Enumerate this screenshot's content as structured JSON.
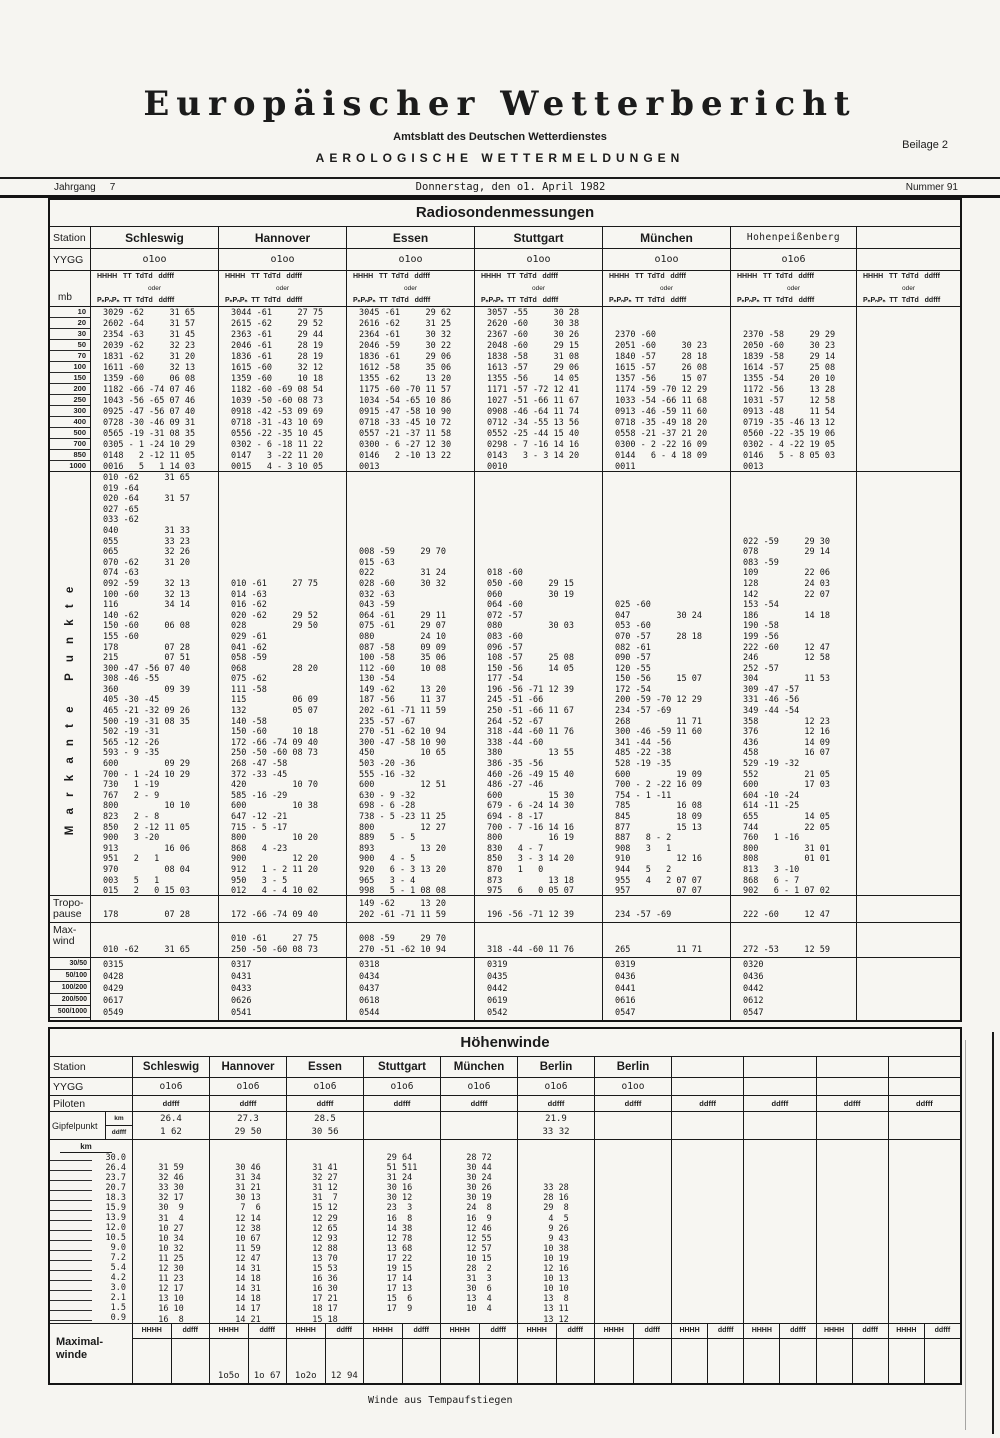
{
  "page": {
    "title": "Europäischer Wetterbericht",
    "subtitle": "Amtsblatt des Deutschen Wetterdienstes",
    "subtitle2": "AEROLOGISCHE WETTERMELDUNGEN",
    "beilage": "Beilage 2",
    "jahrgang_label": "Jahrgang",
    "jahrgang_value": "7",
    "date": "Donnerstag, den o1. April 1982",
    "nummer": "Nummer 91",
    "footer": "Winde aus Tempaufstiegen"
  },
  "radiosonde": {
    "title": "Radiosondenmessungen",
    "station_label": "Station",
    "yygg_label": "YYGG",
    "mb_label": "mb",
    "colhead": {
      "l1": "HHHH   TT  TdTd   ddfff",
      "l2": "oder",
      "l3": "PₙPₙPₙ  TT  TdTd   ddfff"
    },
    "mb_levels": [
      "10",
      "20",
      "30",
      "50",
      "70",
      "100",
      "150",
      "200",
      "250",
      "300",
      "400",
      "500",
      "700",
      "850",
      "1000"
    ],
    "markante_label": "M a r k a n t e   P u n k t e",
    "tropopause_label": "Tropo-\npause",
    "maxwind_label": "Max-\nwind",
    "ratio_labels": [
      "30/50",
      "50/100",
      "100/200",
      "200/500",
      "500/1000"
    ],
    "stations": [
      {
        "name": "Schleswig",
        "yygg": "o1oo",
        "levels": [
          "3029 -62     31 65",
          "2602 -64     31 57",
          "2354 -63     31 45",
          "2039 -62     32 23",
          "1831 -62     31 20",
          "1611 -60     32 13",
          "1359 -60     06 08",
          "1182 -66 -74 07 46",
          "1043 -56 -65 07 46",
          "0925 -47 -56 07 40",
          "0728 -30 -46 09 31",
          "0565 -19 -31 08 35",
          "0305 - 1 -24 10 29",
          "0148   2 -12 11 05",
          "0016   5   1 14 03"
        ],
        "markante": [
          "010 -62     31 65",
          "019 -64",
          "020 -64     31 57",
          "027 -65",
          "033 -62",
          "040         31 33",
          "055         33 23",
          "065         32 26",
          "070 -62     31 20",
          "074 -63",
          "092 -59     32 13",
          "100 -60     32 13",
          "116         34 14",
          "140 -62",
          "150 -60     06 08",
          "155 -60",
          "178         07 28",
          "215         07 51",
          "300 -47 -56 07 40",
          "308 -46 -55",
          "360         09 39",
          "405 -30 -45",
          "465 -21 -32 09 26",
          "500 -19 -31 08 35",
          "502 -19 -31",
          "565 -12 -26",
          "593 - 9 -35",
          "600         09 29",
          "700 - 1 -24 10 29",
          "730   1 -19",
          "767   2 - 9",
          "800         10 10",
          "823   2 - 8",
          "850   2 -12 11 05",
          "900   3 -20",
          "913         16 06",
          "951   2   1",
          "970         08 04",
          "003   5   1",
          "015   2   0 15 03"
        ],
        "tropo": [
          "178         07 28"
        ],
        "maxwind": [
          "010 -62     31 65"
        ],
        "ratios": [
          "0315",
          "0428",
          "0429",
          "0617",
          "0549"
        ]
      },
      {
        "name": "Hannover",
        "yygg": "o1oo",
        "levels": [
          "3044 -61     27 75",
          "2615 -62     29 52",
          "2363 -61     29 44",
          "2046 -61     28 19",
          "1836 -61     28 19",
          "1615 -60     32 12",
          "1359 -60     10 18",
          "1182 -60 -69 08 54",
          "1039 -50 -60 08 73",
          "0918 -42 -53 09 69",
          "0718 -31 -43 10 69",
          "0556 -22 -35 10 45",
          "0302 - 6 -18 11 22",
          "0147   3 -22 11 20",
          "0015   4 - 3 10 05"
        ],
        "markante": [
          "",
          "",
          "",
          "",
          "",
          "",
          "",
          "",
          "",
          "",
          "010 -61     27 75",
          "014 -63",
          "016 -62",
          "020 -62     29 52",
          "028         29 50",
          "029 -61",
          "041 -62",
          "058 -59",
          "068         28 20",
          "075 -62",
          "111 -58",
          "115         06 09",
          "132         05 07",
          "140 -58",
          "150 -60     10 18",
          "172 -66 -74 09 40",
          "250 -50 -60 08 73",
          "268 -47 -58",
          "372 -33 -45",
          "420         10 70",
          "585 -16 -29",
          "600         10 38",
          "647 -12 -21",
          "715 - 5 -17",
          "800         10 20",
          "868   4 -23",
          "900         12 20",
          "912   1 - 2 11 20",
          "950   3 - 5",
          "012   4 - 4 10 02"
        ],
        "tropo": [
          "172 -66 -74 09 40"
        ],
        "maxwind": [
          "010 -61     27 75",
          "250 -50 -60 08 73"
        ],
        "ratios": [
          "0317",
          "0431",
          "0433",
          "0626",
          "0541"
        ]
      },
      {
        "name": "Essen",
        "yygg": "o1oo",
        "levels": [
          "3045 -61     29 62",
          "2616 -62     31 25",
          "2364 -61     30 32",
          "2046 -59     30 22",
          "1836 -61     29 06",
          "1612 -58     35 06",
          "1355 -62     13 20",
          "1175 -60 -70 11 57",
          "1034 -54 -65 10 86",
          "0915 -47 -58 10 90",
          "0718 -33 -45 10 72",
          "0557 -21 -37 11 58",
          "0300 - 6 -27 12 30",
          "0146   2 -10 13 22",
          "0013"
        ],
        "markante": [
          "",
          "",
          "",
          "",
          "",
          "",
          "",
          "008 -59     29 70",
          "015 -63",
          "022         31 24",
          "028 -60     30 32",
          "032 -63",
          "043 -59",
          "064 -61     29 11",
          "075 -61     29 07",
          "080         24 10",
          "087 -58     09 09",
          "100 -58     35 06",
          "112 -60     10 08",
          "130 -54",
          "149 -62     13 20",
          "187 -56     11 37",
          "202 -61 -71 11 59",
          "235 -57 -67",
          "270 -51 -62 10 94",
          "300 -47 -58 10 90",
          "450         10 65",
          "503 -20 -36",
          "555 -16 -32",
          "600         12 51",
          "630 - 9 -32",
          "698 - 6 -28",
          "738 - 5 -23 11 25",
          "800         12 27",
          "889   5 - 5",
          "893         13 20",
          "900   4 - 5",
          "920   6 - 3 13 20",
          "965   3 - 4",
          "998   5 - 1 08 08"
        ],
        "tropo": [
          "149 -62     13 20",
          "202 -61 -71 11 59"
        ],
        "maxwind": [
          "008 -59     29 70",
          "270 -51 -62 10 94"
        ],
        "ratios": [
          "0318",
          "0434",
          "0437",
          "0618",
          "0544"
        ]
      },
      {
        "name": "Stuttgart",
        "yygg": "o1oo",
        "levels": [
          "3057 -55     30 28",
          "2620 -60     30 38",
          "2367 -60     30 26",
          "2048 -60     29 15",
          "1838 -58     31 08",
          "1613 -57     29 06",
          "1355 -56     14 05",
          "1171 -57 -72 12 41",
          "1027 -51 -66 11 67",
          "0908 -46 -64 11 74",
          "0712 -34 -55 13 56",
          "0552 -25 -44 15 40",
          "0298 - 7 -16 14 16",
          "0143   3 - 3 14 20",
          "0010"
        ],
        "markante": [
          "",
          "",
          "",
          "",
          "",
          "",
          "",
          "",
          "",
          "018 -60",
          "050 -60     29 15",
          "060         30 19",
          "064 -60",
          "072 -57",
          "080         30 03",
          "083 -60",
          "096 -57",
          "108 -57     25 08",
          "150 -56     14 05",
          "177 -54",
          "196 -56 -71 12 39",
          "245 -51 -66",
          "250 -51 -66 11 67",
          "264 -52 -67",
          "318 -44 -60 11 76",
          "338 -44 -60",
          "380         13 55",
          "386 -35 -56",
          "460 -26 -49 15 40",
          "486 -27 -46",
          "600         15 30",
          "679 - 6 -24 14 30",
          "694 - 8 -17",
          "700 - 7 -16 14 16",
          "800         16 19",
          "830   4 - 7",
          "850   3 - 3 14 20",
          "870   1   0",
          "873         13 18",
          "975   6   0 05 07"
        ],
        "tropo": [
          "196 -56 -71 12 39"
        ],
        "maxwind": [
          "318 -44 -60 11 76"
        ],
        "ratios": [
          "0319",
          "0435",
          "0442",
          "0619",
          "0542"
        ]
      },
      {
        "name": "München",
        "yygg": "o1oo",
        "levels": [
          "",
          "",
          "2370 -60",
          "2051 -60     30 23",
          "1840 -57     28 18",
          "1615 -57     26 08",
          "1357 -56     15 07",
          "1174 -59 -70 12 29",
          "1033 -54 -66 11 68",
          "0913 -46 -59 11 60",
          "0718 -35 -49 18 20",
          "0558 -21 -37 21 20",
          "0300 - 2 -22 16 09",
          "0144   6 - 4 18 09",
          "0011"
        ],
        "markante": [
          "",
          "",
          "",
          "",
          "",
          "",
          "",
          "",
          "",
          "",
          "",
          "",
          "025 -60",
          "047         30 24",
          "053 -60",
          "070 -57     28 18",
          "082 -61",
          "090 -57",
          "120 -55",
          "150 -56     15 07",
          "172 -54",
          "200 -59 -70 12 29",
          "234 -57 -69",
          "268         11 71",
          "300 -46 -59 11 60",
          "341 -44 -56",
          "485 -22 -38",
          "528 -19 -35",
          "600         19 09",
          "700 - 2 -22 16 09",
          "754 - 1 -11",
          "785         16 08",
          "845         18 09",
          "877         15 13",
          "887   8 - 2",
          "908   3   1",
          "910         12 16",
          "944   5   2",
          "955   4   2 07 07",
          "957         07 07"
        ],
        "tropo": [
          "234 -57 -69"
        ],
        "maxwind": [
          "265         11 71"
        ],
        "ratios": [
          "0319",
          "0436",
          "0441",
          "0616",
          "0547"
        ]
      },
      {
        "name": "Hohenpeißenberg",
        "yygg": "o1o6",
        "levels": [
          "",
          "",
          "2370 -58     29 29",
          "2050 -60     30 23",
          "1839 -58     29 14",
          "1614 -57     25 08",
          "1355 -54     20 10",
          "1172 -56     13 28",
          "1031 -57     12 58",
          "0913 -48     11 54",
          "0719 -35 -46 13 12",
          "0560 -22 -35 19 06",
          "0302 - 4 -22 19 05",
          "0146   5 - 8 05 03",
          "0013"
        ],
        "markante": [
          "",
          "",
          "",
          "",
          "",
          "",
          "022 -59     29 30",
          "078         29 14",
          "083 -59",
          "109         22 06",
          "128         24 03",
          "142         22 07",
          "153 -54",
          "186         14 18",
          "190 -58",
          "199 -56",
          "222 -60     12 47",
          "246         12 58",
          "252 -57",
          "304         11 53",
          "309 -47 -57",
          "331 -46 -56",
          "349 -44 -54",
          "358         12 23",
          "376         12 16",
          "436         14 09",
          "458         16 07",
          "529 -19 -32",
          "552         21 05",
          "600         17 03",
          "604 -10 -24",
          "614 -11 -25",
          "655         14 05",
          "744         22 05",
          "760   1 -16",
          "800         31 01",
          "808         01 01",
          "813   3 -10",
          "868   6 - 7",
          "902   6 - 1 07 02"
        ],
        "tropo": [
          "222 -60     12 47"
        ],
        "maxwind": [
          "272 -53     12 59"
        ],
        "ratios": [
          "0320",
          "0436",
          "0442",
          "0612",
          "0547"
        ]
      },
      {
        "name": "",
        "yygg": "",
        "levels": [],
        "markante": [],
        "tropo": [],
        "maxwind": [],
        "ratios": []
      }
    ]
  },
  "hoehenwinde": {
    "title": "Höhenwinde",
    "station_label": "Station",
    "yygg_label": "YYGG",
    "piloten_label": "Piloten",
    "gipfel_label": "Gipfelpunkt",
    "km_label": "km",
    "ddfff_label": "ddfff",
    "hhhh_label": "HHHH",
    "maximal_label": "Maximal-\nwinde",
    "km_rows": [
      "30.0",
      "26.4",
      "23.7",
      "20.7",
      "18.3",
      "15.9",
      "13.9",
      "12.0",
      "10.5",
      "9.0",
      "7.2",
      "5.4",
      "4.2",
      "3.0",
      "2.1",
      "1.5",
      "0.9"
    ],
    "columns": [
      {
        "name": "Schleswig",
        "yygg": "o1o6",
        "piloten": "ddfff",
        "gipfel_km": "26.4",
        "gipfel_dd": "1 62",
        "winds": [
          "",
          "31 59",
          "32 46",
          "33 30",
          "32 17",
          "30  9",
          "31  4",
          "10 27",
          "10 34",
          "10 32",
          "11 25",
          "12 30",
          "11 23",
          "12 17",
          "13 10",
          "16 10",
          "16  8"
        ],
        "max_hhhh": "",
        "max_ddfff": ""
      },
      {
        "name": "Hannover",
        "yygg": "o1o6",
        "piloten": "ddfff",
        "gipfel_km": "27.3",
        "gipfel_dd": "29 50",
        "winds": [
          "",
          "30 46",
          "31 34",
          "31 21",
          "30 13",
          " 7  6",
          "12 14",
          "12 38",
          "10 67",
          "11 59",
          "12 47",
          "14 31",
          "14 18",
          "14 31",
          "14 18",
          "14 17",
          "14 21"
        ],
        "max_hhhh": "1o5o",
        "max_ddfff": "1o 67"
      },
      {
        "name": "Essen",
        "yygg": "o1o6",
        "piloten": "ddfff",
        "gipfel_km": "28.5",
        "gipfel_dd": "30 56",
        "winds": [
          "",
          "31 41",
          "32 27",
          "31 12",
          "31  7",
          "15 12",
          "12 29",
          "12 65",
          "12 93",
          "12 88",
          "13 70",
          "15 53",
          "16 36",
          "16 30",
          "17 21",
          "18 17",
          "15 18"
        ],
        "max_hhhh": "1o2o",
        "max_ddfff": "12 94"
      },
      {
        "name": "Stuttgart",
        "yygg": "o1o6",
        "piloten": "ddfff",
        "gipfel_km": "",
        "gipfel_dd": "",
        "winds": [
          "29 64",
          "51 511",
          "31 24",
          "30 16",
          "30 12",
          "23  3",
          "16  8",
          "14 38",
          "12 78",
          "13 68",
          "17 22",
          "19 15",
          "17 14",
          "17 13",
          "15  6",
          "17  9",
          ""
        ],
        "max_hhhh": "",
        "max_ddfff": ""
      },
      {
        "name": "München",
        "yygg": "o1o6",
        "piloten": "ddfff",
        "gipfel_km": "",
        "gipfel_dd": "",
        "winds": [
          "28 72",
          "30 44",
          "30 24",
          "30 26",
          "30 19",
          "24  8",
          "16  9",
          "12 46",
          "12 55",
          "12 57",
          "10 15",
          "28  2",
          "31  3",
          "30  6",
          "13  4",
          "10  4",
          ""
        ],
        "max_hhhh": "",
        "max_ddfff": ""
      },
      {
        "name": "Berlin",
        "yygg": "o1o6",
        "piloten": "ddfff",
        "gipfel_km": "21.9",
        "gipfel_dd": "33 32",
        "winds": [
          "",
          "",
          "",
          "33 28",
          "28 16",
          "29  8",
          " 4  5",
          " 9 26",
          " 9 43",
          "10 38",
          "10 19",
          "12 16",
          "10 13",
          "10 10",
          "13  8",
          "13 11",
          "13 12"
        ],
        "max_hhhh": "",
        "max_ddfff": ""
      },
      {
        "name": "Berlin",
        "yygg": "o1oo",
        "piloten": "ddfff",
        "gipfel_km": "",
        "gipfel_dd": "",
        "winds": [],
        "max_hhhh": "",
        "max_ddfff": ""
      },
      {
        "name": "",
        "yygg": "",
        "piloten": "ddfff",
        "gipfel_km": "",
        "gipfel_dd": "",
        "winds": [],
        "max_hhhh": "",
        "max_ddfff": ""
      },
      {
        "name": "",
        "yygg": "",
        "piloten": "ddfff",
        "gipfel_km": "",
        "gipfel_dd": "",
        "winds": [],
        "max_hhhh": "",
        "max_ddfff": ""
      },
      {
        "name": "",
        "yygg": "",
        "piloten": "ddfff",
        "gipfel_km": "",
        "gipfel_dd": "",
        "winds": [],
        "max_hhhh": "",
        "max_ddfff": ""
      },
      {
        "name": "",
        "yygg": "",
        "piloten": "ddfff",
        "gipfel_km": "",
        "gipfel_dd": "",
        "winds": [],
        "max_hhhh": "",
        "max_ddfff": ""
      }
    ]
  }
}
